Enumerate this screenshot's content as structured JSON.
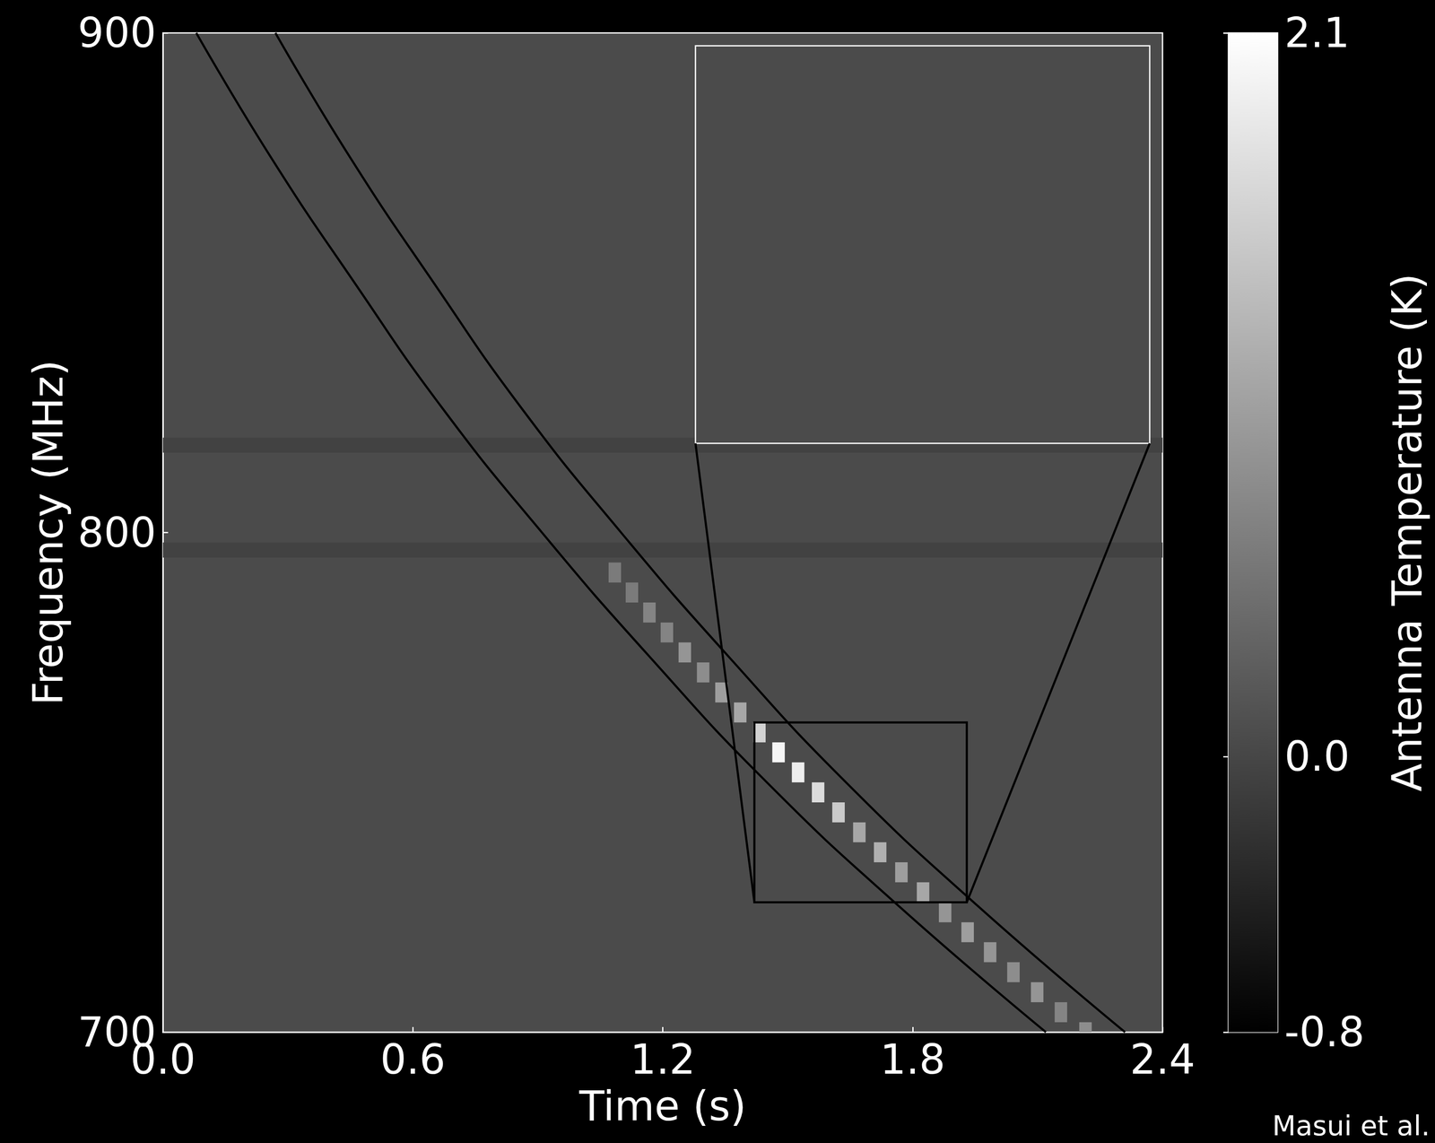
{
  "chart_data": {
    "type": "heatmap",
    "xlabel": "Time (s)",
    "ylabel": "Frequency (MHz)",
    "xlim": [
      0,
      2.4
    ],
    "xticks": [
      {
        "value": 0,
        "label": "0.0"
      },
      {
        "value": 0.6,
        "label": "0.6"
      },
      {
        "value": 1.2,
        "label": "1.2"
      },
      {
        "value": 1.8,
        "label": "1.8"
      },
      {
        "value": 2.4,
        "label": "2.4"
      }
    ],
    "ylim": [
      700,
      900
    ],
    "yticks": [
      700,
      800,
      900
    ],
    "background": 0.05,
    "masked_bands": [
      {
        "ylim": [
          795,
          798
        ],
        "value": -0.05
      },
      {
        "ylim": [
          816,
          819
        ],
        "value": -0.05
      }
    ],
    "cell_size": [
      0.03,
      4
    ],
    "cells": [
      [
        2.215,
        700,
        0.8
      ],
      [
        2.156,
        704,
        0.7
      ],
      [
        2.099,
        708,
        0.9
      ],
      [
        2.042,
        712,
        0.8
      ],
      [
        1.986,
        716,
        0.9
      ],
      [
        1.932,
        720,
        1.0
      ],
      [
        1.878,
        724,
        0.9
      ],
      [
        1.825,
        728,
        1.1
      ],
      [
        1.773,
        732,
        1.0
      ],
      [
        1.722,
        736,
        1.2
      ],
      [
        1.672,
        740,
        1.1
      ],
      [
        1.622,
        744,
        1.5
      ],
      [
        1.573,
        748,
        1.7
      ],
      [
        1.525,
        752,
        1.9
      ],
      [
        1.478,
        756,
        2.0
      ],
      [
        1.432,
        760,
        1.6
      ],
      [
        1.386,
        764,
        1.1
      ],
      [
        1.341,
        768,
        1.0
      ],
      [
        1.297,
        772,
        0.8
      ],
      [
        1.253,
        776,
        0.9
      ],
      [
        1.21,
        780,
        0.7
      ],
      [
        1.168,
        784,
        0.7
      ],
      [
        1.126,
        788,
        0.6
      ],
      [
        1.085,
        792,
        0.6
      ]
    ],
    "curves": [
      {
        "color": "#000000",
        "x": [
          0.08,
          0.26,
          0.46,
          0.67,
          0.91,
          1.17,
          1.45,
          1.77,
          2.12
        ],
        "y": [
          900,
          875,
          850,
          825,
          800,
          775,
          750,
          725,
          700
        ]
      },
      {
        "color": "#000000",
        "x": [
          0.27,
          0.45,
          0.65,
          0.86,
          1.1,
          1.36,
          1.64,
          1.96,
          2.31
        ],
        "y": [
          900,
          875,
          850,
          825,
          800,
          775,
          750,
          725,
          700
        ]
      }
    ],
    "inset": {
      "xlim": [
        1.42,
        1.93
      ],
      "ylim": [
        726,
        762
      ],
      "tick_labels": false
    },
    "colorbar": {
      "label": "Antenna Temperature (K)",
      "range": [
        -0.8,
        2.1
      ],
      "ticks": [
        -0.8,
        {
          "value": 0,
          "label": "0.0"
        },
        2.1
      ]
    },
    "credit": "Masui et al."
  }
}
